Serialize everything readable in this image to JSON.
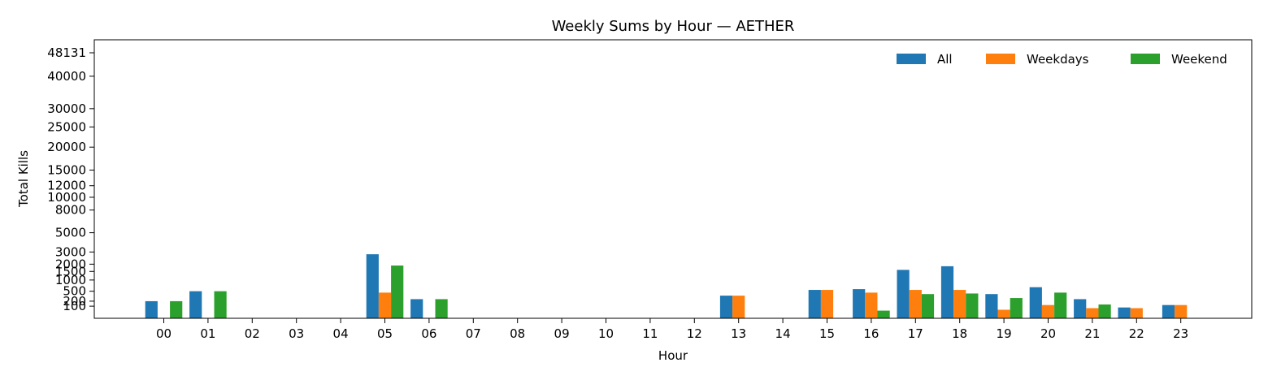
{
  "chart_data": {
    "type": "bar",
    "title": "Weekly Sums by Hour — AETHER",
    "xlabel": "Hour",
    "ylabel": "Total Kills",
    "categories": [
      "00",
      "01",
      "02",
      "03",
      "04",
      "05",
      "06",
      "07",
      "08",
      "09",
      "10",
      "11",
      "12",
      "13",
      "14",
      "15",
      "16",
      "17",
      "18",
      "19",
      "20",
      "21",
      "22",
      "23"
    ],
    "series": [
      {
        "name": "All",
        "color": "#1f77b4",
        "values": [
          200,
          500,
          0,
          0,
          0,
          2800,
          250,
          0,
          0,
          0,
          0,
          0,
          0,
          350,
          0,
          550,
          580,
          1600,
          1850,
          400,
          660,
          250,
          80,
          120
        ]
      },
      {
        "name": "Weekdays",
        "color": "#ff7f0e",
        "values": [
          0,
          0,
          0,
          0,
          0,
          450,
          0,
          0,
          0,
          0,
          0,
          0,
          0,
          350,
          0,
          550,
          450,
          550,
          550,
          50,
          120,
          70,
          70,
          120
        ]
      },
      {
        "name": "Weekend",
        "color": "#2ca02c",
        "values": [
          200,
          500,
          0,
          0,
          0,
          1900,
          250,
          0,
          0,
          0,
          0,
          0,
          0,
          0,
          0,
          0,
          40,
          400,
          420,
          280,
          450,
          130,
          0,
          0
        ]
      }
    ],
    "yticks": [
      100,
      200,
      500,
      1000,
      1500,
      2000,
      3000,
      5000,
      8000,
      10000,
      12000,
      15000,
      20000,
      25000,
      30000,
      40000,
      48131
    ],
    "ytick_labels": [
      "100",
      "200",
      "500",
      "1000",
      "1500",
      "2000",
      "3000",
      "5000",
      "8000",
      "10000",
      "12000",
      "15000",
      "20000",
      "25000",
      "30000",
      "40000",
      "48131"
    ],
    "yscale": "sqrt",
    "ylim": [
      0,
      48131
    ],
    "legend": "upper-right",
    "grid": false
  }
}
